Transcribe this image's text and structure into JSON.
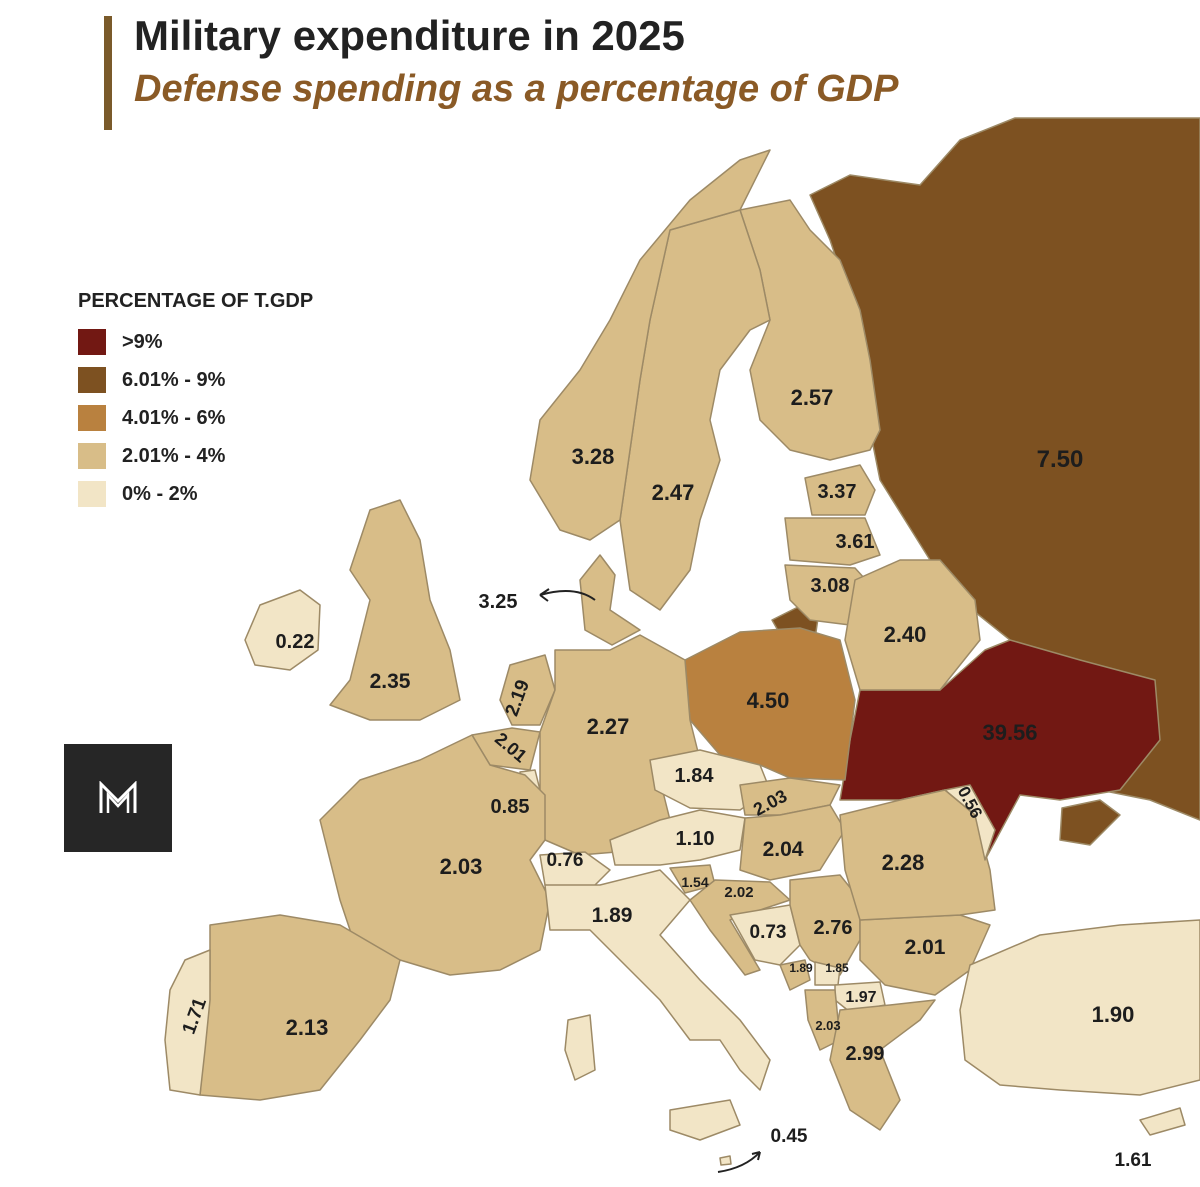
{
  "header": {
    "title": "Military expenditure in 2025",
    "subtitle": "Defense spending as a percentage of GDP"
  },
  "legend": {
    "title": "PERCENTAGE OF T.GDP",
    "items": [
      {
        "label": ">9%",
        "color": "#721813"
      },
      {
        "label": "6.01% - 9%",
        "color": "#7d5121"
      },
      {
        "label": "4.01% - 6%",
        "color": "#b9813f"
      },
      {
        "label": "2.01% - 4%",
        "color": "#d8bd88"
      },
      {
        "label": "0% - 2%",
        "color": "#f2e5c6"
      }
    ]
  },
  "colors": {
    "sea": "#ffffff",
    "border": "#9d8a66"
  },
  "logo": {
    "icon": "m-logo-icon"
  },
  "regions": {
    "russia": "7.50",
    "ukraine": "39.56",
    "poland": "4.50",
    "finland": "2.57",
    "sweden": "2.47",
    "norway": "3.28",
    "denmark": "3.25",
    "estonia": "3.37",
    "latvia": "3.61",
    "lithuania": "3.08",
    "belarus": "2.40",
    "ireland": "0.22",
    "uk": "2.35",
    "netherlands": "2.19",
    "belgium": "2.01",
    "luxembourg": "0.85",
    "germany": "2.27",
    "czechia": "1.84",
    "slovakia": "2.03",
    "austria": "1.10",
    "hungary": "2.04",
    "switzerland": "0.76",
    "slovenia": "1.54",
    "croatia": "2.02",
    "france": "2.03",
    "italy": "1.89",
    "bosnia": "0.73",
    "serbia": "2.76",
    "montenegro": "1.89",
    "kosovo": "1.85",
    "north_macedonia": "1.97",
    "albania": "2.03",
    "greece": "2.99",
    "bulgaria": "2.01",
    "romania": "2.28",
    "moldova": "0.56",
    "turkey": "1.90",
    "cyprus": "1.61",
    "malta": "0.45",
    "spain": "2.13",
    "portugal": "1.71"
  }
}
